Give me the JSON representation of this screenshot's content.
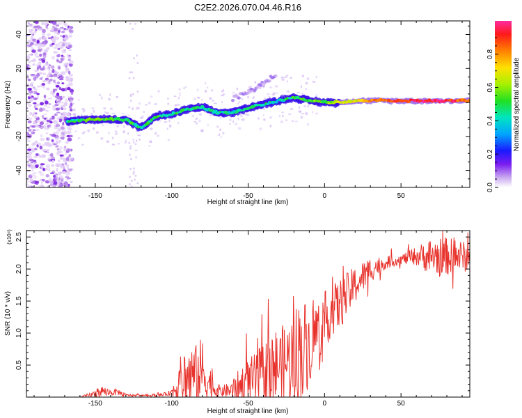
{
  "figure_title": "C2E2.2026.070.04.46.R16",
  "chart_data": [
    {
      "type": "heatmap",
      "xlabel": "Height of straight line (km)",
      "ylabel": "Frequency (Hz)",
      "xlim": [
        -195,
        95
      ],
      "ylim": [
        -50,
        48
      ],
      "xticks": [
        -150,
        -100,
        -50,
        0,
        50
      ],
      "yticks": [
        -40,
        -20,
        0,
        20,
        40
      ],
      "noise_region_x": [
        -195,
        -165
      ],
      "ridge": {
        "x": [
          -168,
          -150,
          -130,
          -120,
          -110,
          -100,
          -90,
          -80,
          -70,
          -60,
          -50,
          -40,
          -30,
          -20,
          -10,
          0,
          10,
          20,
          40,
          60,
          80,
          95
        ],
        "freq": [
          -11,
          -10,
          -10,
          -15,
          -8,
          -7,
          -4,
          -3,
          -6,
          -6,
          -3,
          -1,
          1,
          3,
          1,
          0,
          0,
          1,
          1,
          1,
          1,
          1
        ],
        "amplitude": [
          0.45,
          0.55,
          0.5,
          0.45,
          0.5,
          0.45,
          0.5,
          0.45,
          0.45,
          0.4,
          0.5,
          0.45,
          0.4,
          0.5,
          0.55,
          0.55,
          0.7,
          0.7,
          0.85,
          0.95,
          0.95,
          0.8
        ]
      },
      "upper_branch": {
        "x": [
          -60,
          -50,
          -40,
          -32
        ],
        "freq": [
          2,
          6,
          11,
          16
        ]
      }
    },
    {
      "type": "colorbar",
      "ylabel": "Normalized spectral amplitude",
      "range": [
        0,
        1
      ],
      "ticks": [
        0.0,
        0.2,
        0.4,
        0.6,
        0.8
      ]
    },
    {
      "type": "line",
      "xlabel": "Height of straight line (km)",
      "ylabel": "SNR (10 * v/v)",
      "scale_label": "(x10⁴)",
      "xlim": [
        -195,
        95
      ],
      "ylim": [
        0,
        2.6
      ],
      "xticks": [
        -150,
        -100,
        -50,
        0,
        50
      ],
      "yticks": [
        0.5,
        1.0,
        1.5,
        2.0,
        2.5
      ],
      "color": "#e8332d",
      "envelope": {
        "x": [
          -195,
          -160,
          -150,
          -145,
          -140,
          -135,
          -130,
          -120,
          -110,
          -103,
          -100,
          -95,
          -90,
          -85,
          -80,
          -75,
          -70,
          -65,
          -60,
          -55,
          -50,
          -45,
          -40,
          -35,
          -30,
          -25,
          -20,
          -15,
          -10,
          -5,
          0,
          5,
          10,
          20,
          30,
          40,
          50,
          60,
          70,
          80,
          90,
          95
        ],
        "base": [
          0.0,
          0.0,
          0.05,
          0.1,
          0.07,
          0.08,
          0.03,
          0.03,
          0.03,
          0.05,
          0.08,
          0.2,
          0.3,
          0.35,
          0.4,
          0.2,
          0.1,
          0.1,
          0.1,
          0.15,
          0.2,
          0.25,
          0.35,
          0.45,
          0.5,
          0.55,
          0.6,
          0.75,
          0.8,
          1.05,
          1.2,
          1.35,
          1.45,
          1.75,
          2.0,
          2.1,
          2.15,
          2.2,
          2.2,
          2.2,
          2.2,
          2.15
        ],
        "spread": [
          0.0,
          0.0,
          0.06,
          0.08,
          0.05,
          0.05,
          0.02,
          0.01,
          0.02,
          0.03,
          0.05,
          0.4,
          0.6,
          0.45,
          0.55,
          0.3,
          0.1,
          0.1,
          0.15,
          0.35,
          0.4,
          0.45,
          0.5,
          0.65,
          0.6,
          0.6,
          0.8,
          0.9,
          0.6,
          0.5,
          0.45,
          0.4,
          0.4,
          0.3,
          0.2,
          0.1,
          0.08,
          0.15,
          0.3,
          0.3,
          0.25,
          0.2
        ]
      }
    }
  ]
}
